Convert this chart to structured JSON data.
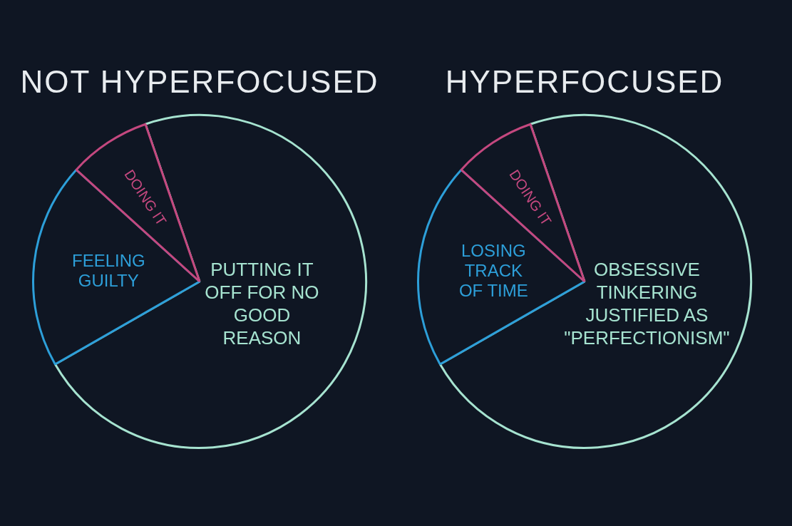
{
  "chart_data": [
    {
      "type": "pie",
      "title": "NOT HYPERFOCUSED",
      "categories": [
        "PUTTING IT OFF FOR NO GOOD REASON",
        "FEELING GUILTY",
        "DOING IT"
      ],
      "values": [
        72,
        20,
        8
      ],
      "colors": [
        "#a6e3d0",
        "#2d9fd9",
        "#c4487f"
      ],
      "legend": false
    },
    {
      "type": "pie",
      "title": "HYPERFOCUSED",
      "categories": [
        "OBSESSIVE TINKERING JUSTIFIED AS \"PERFECTIONISM\"",
        "LOSING TRACK OF TIME",
        "DOING IT"
      ],
      "values": [
        72,
        20,
        8
      ],
      "colors": [
        "#a6e3d0",
        "#2d9fd9",
        "#c4487f"
      ],
      "legend": false
    }
  ]
}
